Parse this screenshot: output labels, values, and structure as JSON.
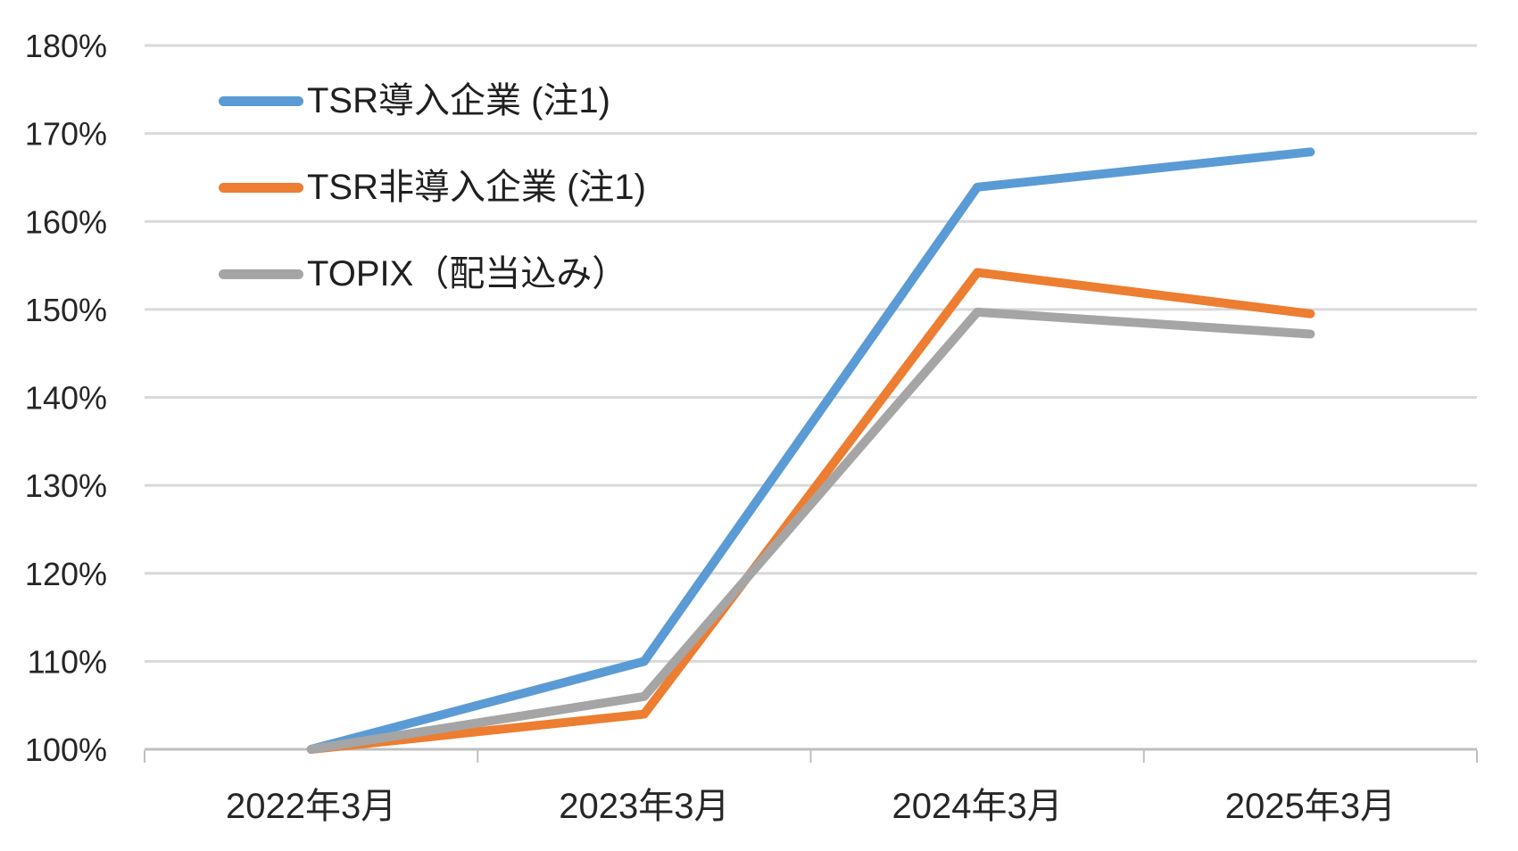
{
  "chart_data": {
    "type": "line",
    "title": "",
    "categories": [
      "2022年3月",
      "2023年3月",
      "2024年3月",
      "2025年3月"
    ],
    "series": [
      {
        "key": "tsr-adopters",
        "name": "TSR導入企業 (注1)",
        "color": "#5B9BD5",
        "values": [
          100,
          110,
          163.9,
          167.9
        ]
      },
      {
        "key": "tsr-non-adopters",
        "name": "TSR非導入企業 (注1)",
        "color": "#ED7D31",
        "values": [
          100,
          104,
          154.2,
          149.5
        ]
      },
      {
        "key": "topix-dividends-included",
        "name": "TOPIX（配当込み）",
        "color": "#A5A5A5",
        "values": [
          100,
          106,
          149.7,
          147.2
        ]
      }
    ],
    "value_unit": "%",
    "ylim": [
      100,
      180
    ],
    "ytick_step": 10,
    "ytick_labels": [
      "100%",
      "110%",
      "120%",
      "130%",
      "140%",
      "150%",
      "160%",
      "170%",
      "180%"
    ],
    "xlabel": "",
    "ylabel": "",
    "grid": true,
    "legend_position": "top-left-inside",
    "styles": {
      "gridline_color": "#D9D9D9",
      "axis_color": "#BFBFBF",
      "label_color": "#262626",
      "background": "#FFFFFF"
    }
  }
}
